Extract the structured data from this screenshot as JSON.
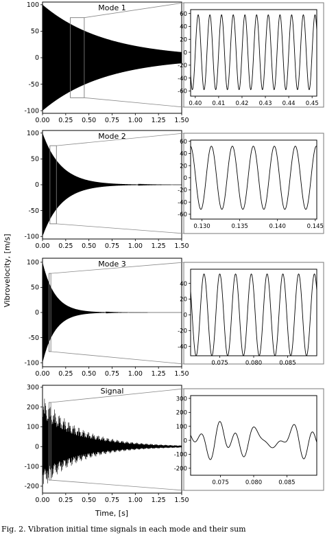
{
  "figure": {
    "ylabel": "Vibrovelocity, [m/s]",
    "xlabel": "Time, [s]",
    "caption": "Fig. 2.   Vibration initial time signals in each mode and their sum"
  },
  "chart_data": [
    {
      "type": "line",
      "title": "Mode 1",
      "role": "main",
      "x_range": [
        0.0,
        1.5
      ],
      "ylim": [
        -105,
        105
      ],
      "xticks": [
        "0.00",
        "0.25",
        "0.50",
        "0.75",
        "1.00",
        "1.25",
        "1.50"
      ],
      "yticks": [
        100,
        50,
        0,
        -50,
        -100
      ],
      "envelope": {
        "amplitude": 100,
        "decay_per_s": 1.5
      },
      "zoom_window": [
        0.3,
        0.45
      ]
    },
    {
      "type": "line",
      "role": "zoom",
      "zoom_of": "Mode 1",
      "x_range": [
        0.398,
        0.452
      ],
      "ylim": [
        -68,
        66
      ],
      "xticks": [
        "0.40",
        "0.41",
        "0.42",
        "0.43",
        "0.44",
        "0.45"
      ],
      "yticks": [
        60,
        40,
        20,
        0,
        -20,
        -40,
        -60
      ],
      "frequency_hz": 200,
      "amplitude": 58
    },
    {
      "type": "line",
      "title": "Mode 2",
      "role": "main",
      "x_range": [
        0.0,
        1.5
      ],
      "ylim": [
        -105,
        105
      ],
      "xticks": [
        "0.00",
        "0.25",
        "0.50",
        "0.75",
        "1.00",
        "1.25",
        "1.50"
      ],
      "yticks": [
        100,
        50,
        0,
        -50,
        -100
      ],
      "envelope": {
        "amplitude": 100,
        "decay_per_s": 5
      },
      "zoom_window": [
        0.08,
        0.15
      ]
    },
    {
      "type": "line",
      "role": "zoom",
      "zoom_of": "Mode 2",
      "x_range": [
        0.1285,
        0.1452
      ],
      "ylim": [
        -68,
        62
      ],
      "xticks": [
        "0.130",
        "0.135",
        "0.140",
        "0.145"
      ],
      "yticks": [
        60,
        40,
        20,
        0,
        -20,
        -40,
        -60
      ],
      "frequency_hz": 360,
      "amplitude": 52
    },
    {
      "type": "line",
      "title": "Mode 3",
      "role": "main",
      "x_range": [
        0.0,
        1.5
      ],
      "ylim": [
        -108,
        108
      ],
      "xticks": [
        "0.00",
        "0.25",
        "0.50",
        "0.75",
        "1.00",
        "1.25",
        "1.50"
      ],
      "yticks": [
        100,
        50,
        0,
        -50,
        -100
      ],
      "envelope": {
        "amplitude": 100,
        "decay_per_s": 7.5
      },
      "zoom_window": [
        0.07,
        0.09
      ]
    },
    {
      "type": "line",
      "role": "zoom",
      "zoom_of": "Mode 3",
      "x_range": [
        0.0707,
        0.0893
      ],
      "ylim": [
        -52,
        58
      ],
      "xticks": [
        "0.075",
        "0.080",
        "0.085"
      ],
      "yticks": [
        40,
        20,
        0,
        -20,
        -40
      ],
      "frequency_hz": 430,
      "amplitude": 52
    },
    {
      "type": "line",
      "title": "Signal",
      "role": "main",
      "x_range": [
        0.0,
        1.5
      ],
      "ylim": [
        -235,
        310
      ],
      "xticks": [
        "0.00",
        "0.25",
        "0.50",
        "0.75",
        "1.00",
        "1.25",
        "1.50"
      ],
      "yticks": [
        300,
        200,
        100,
        0,
        -100,
        -200
      ],
      "envelope": {
        "amplitude": 260,
        "decay_per_s": 2.5
      },
      "zoom_window": [
        0.07,
        0.09
      ]
    },
    {
      "type": "line",
      "role": "zoom",
      "zoom_of": "Signal",
      "x_range": [
        0.0705,
        0.0895
      ],
      "ylim": [
        -250,
        320
      ],
      "xticks": [
        "0.075",
        "0.080",
        "0.085"
      ],
      "yticks": [
        300,
        200,
        100,
        0,
        -100,
        -200
      ],
      "components_hz": [
        200,
        360,
        430
      ]
    }
  ]
}
